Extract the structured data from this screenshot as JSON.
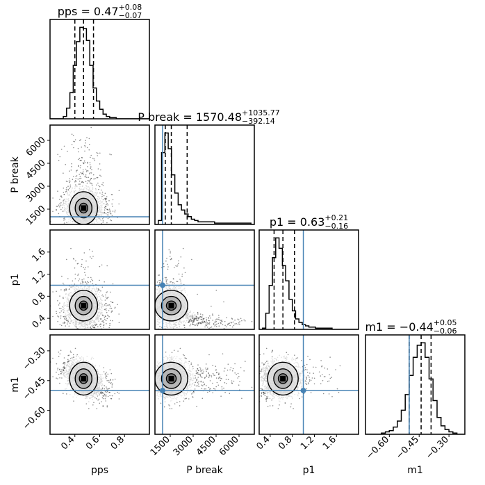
{
  "chart_data": {
    "type": "corner",
    "title": "",
    "parameters": [
      {
        "name": "pps",
        "label": "pps",
        "median": "0.47",
        "plus": "+0.08",
        "minus": "−0.07",
        "range": [
          0.2,
          1.0
        ],
        "ticks": [
          0.4,
          0.6,
          0.8
        ],
        "tick_labels": [
          "0.4",
          "0.6",
          "0.8"
        ],
        "quantiles": [
          0.4,
          0.47,
          0.55
        ],
        "truth": null
      },
      {
        "name": "P break",
        "label": "P break",
        "median": "1570.48",
        "plus": "+1035.77",
        "minus": "−392.14",
        "range": [
          500,
          7000
        ],
        "ticks": [
          1500,
          3000,
          4500,
          6000
        ],
        "tick_labels": [
          "1500",
          "3000",
          "4500",
          "6000"
        ],
        "quantiles": [
          1178,
          1570,
          2606
        ],
        "truth": 1000
      },
      {
        "name": "p1",
        "label": "p1",
        "median": "0.63",
        "plus": "+0.21",
        "minus": "−0.16",
        "range": [
          0.2,
          2.0
        ],
        "ticks": [
          0.4,
          0.8,
          1.2,
          1.6
        ],
        "tick_labels": [
          "0.4",
          "0.8",
          "1.2",
          "1.6"
        ],
        "quantiles": [
          0.47,
          0.63,
          0.84
        ],
        "truth": 1.0
      },
      {
        "name": "m1",
        "label": "m1",
        "median": "−0.44",
        "plus": "+0.05",
        "minus": "−0.06",
        "range": [
          -0.72,
          -0.22
        ],
        "ticks": [
          -0.6,
          -0.45,
          -0.3
        ],
        "tick_labels": [
          "−0.60",
          "−0.45",
          "−0.30"
        ],
        "quantiles": [
          -0.5,
          -0.44,
          -0.39
        ],
        "truth": -0.5
      }
    ],
    "diagonal_titles": [
      {
        "prefix": "pps = ",
        "value": "0.47",
        "plus": "+0.08",
        "minus": "−0.07"
      },
      {
        "prefix": "P break = ",
        "value": "1570.48",
        "plus": "+1035.77",
        "minus": "−392.14"
      },
      {
        "prefix": "p1 = ",
        "value": "0.63",
        "plus": "+0.21",
        "minus": "−0.16"
      },
      {
        "prefix": "m1 = ",
        "value": "−0.44",
        "plus": "+0.05",
        "minus": "−0.06"
      }
    ],
    "histograms": [
      {
        "param": "pps",
        "bins_from": 0.2,
        "bins_to": 1.0,
        "counts": [
          0,
          0,
          0,
          0,
          2,
          9,
          22,
          45,
          65,
          77,
          76,
          66,
          45,
          26,
          15,
          8,
          4,
          2,
          1,
          1,
          0,
          0,
          0,
          0,
          0,
          0,
          0,
          0,
          0,
          0
        ]
      },
      {
        "param": "P break",
        "bins_from": 500,
        "bins_to": 7000,
        "counts": [
          0,
          3,
          55,
          70,
          58,
          38,
          24,
          15,
          11,
          8,
          6,
          4,
          3,
          2,
          2,
          2,
          2,
          2,
          1,
          1,
          1,
          1,
          1,
          1,
          1,
          1,
          1,
          1,
          1,
          0
        ]
      },
      {
        "param": "p1",
        "bins_from": 0.2,
        "bins_to": 2.0,
        "counts": [
          0,
          1,
          14,
          38,
          62,
          79,
          70,
          55,
          42,
          26,
          16,
          9,
          6,
          4,
          3,
          2,
          2,
          1,
          1,
          1,
          1,
          1,
          0,
          0,
          0,
          0,
          0,
          0,
          0,
          0
        ]
      },
      {
        "param": "m1",
        "bins_from": -0.72,
        "bins_to": -0.22,
        "counts": [
          0,
          0,
          0,
          0,
          1,
          2,
          3,
          6,
          11,
          20,
          33,
          49,
          64,
          74,
          76,
          64,
          46,
          28,
          14,
          7,
          4,
          2,
          1,
          0,
          0
        ]
      }
    ],
    "truth_color": "#4682b4",
    "line_color": "#000000"
  }
}
